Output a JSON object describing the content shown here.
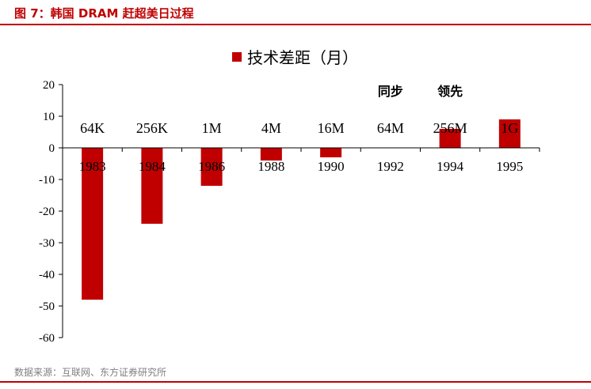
{
  "figure": {
    "title": "图 7：韩国 DRAM 赶超美日过程",
    "source": "数据来源：互联网、东方证券研究所",
    "accent_color": "#c00000"
  },
  "chart_data": {
    "type": "bar",
    "categories": [
      "1983",
      "1984",
      "1986",
      "1988",
      "1990",
      "1992",
      "1994",
      "1995"
    ],
    "series": [
      {
        "name": "技术差距（月）",
        "color": "#c00000",
        "values": [
          -48,
          -24,
          -12,
          -4,
          -3,
          0,
          6,
          9
        ]
      }
    ],
    "products": [
      "64K",
      "256K",
      "1M",
      "4M",
      "16M",
      "64M",
      "256M",
      "1G"
    ],
    "annotations": [
      {
        "text": "同步",
        "category": "1992"
      },
      {
        "text": "领先",
        "category": "1994"
      }
    ],
    "ylim": [
      -60,
      20
    ],
    "yticks": [
      -60,
      -50,
      -40,
      -30,
      -20,
      -10,
      0,
      10,
      20
    ],
    "legend": "top-center",
    "grid": false,
    "xlabel": "",
    "ylabel": ""
  }
}
